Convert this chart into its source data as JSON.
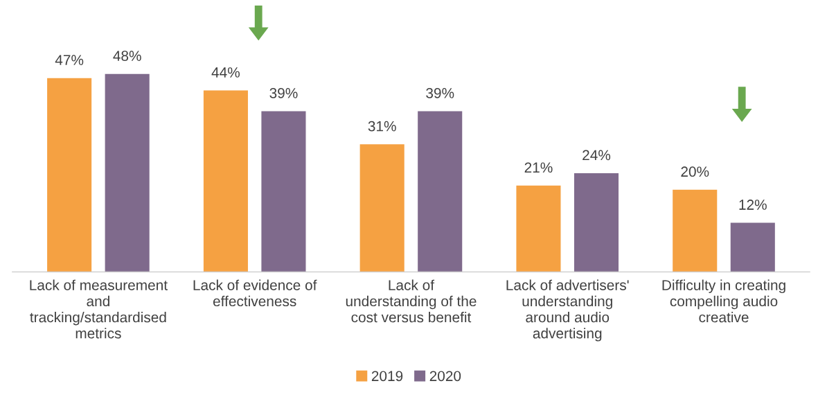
{
  "chart_data": {
    "type": "bar",
    "categories": [
      "Lack of measurement\nand\ntracking/standardised\nmetrics",
      "Lack of evidence of\neffectiveness",
      "Lack of\nunderstanding of the\ncost versus benefit",
      "Lack of advertisers'\nunderstanding\naround audio\nadvertising",
      "Difficulty in creating\ncompelling audio\ncreative"
    ],
    "series": [
      {
        "name": "2019",
        "color": "#f5a142",
        "values": [
          47,
          44,
          31,
          21,
          20
        ],
        "value_labels": [
          "47%",
          "44%",
          "31%",
          "21%",
          "20%"
        ]
      },
      {
        "name": "2020",
        "color": "#7f6a8c",
        "values": [
          48,
          39,
          39,
          24,
          12
        ],
        "value_labels": [
          "48%",
          "39%",
          "39%",
          "24%",
          "12%"
        ]
      }
    ],
    "legend": "bottom",
    "tick_labels": "x"
  }
}
